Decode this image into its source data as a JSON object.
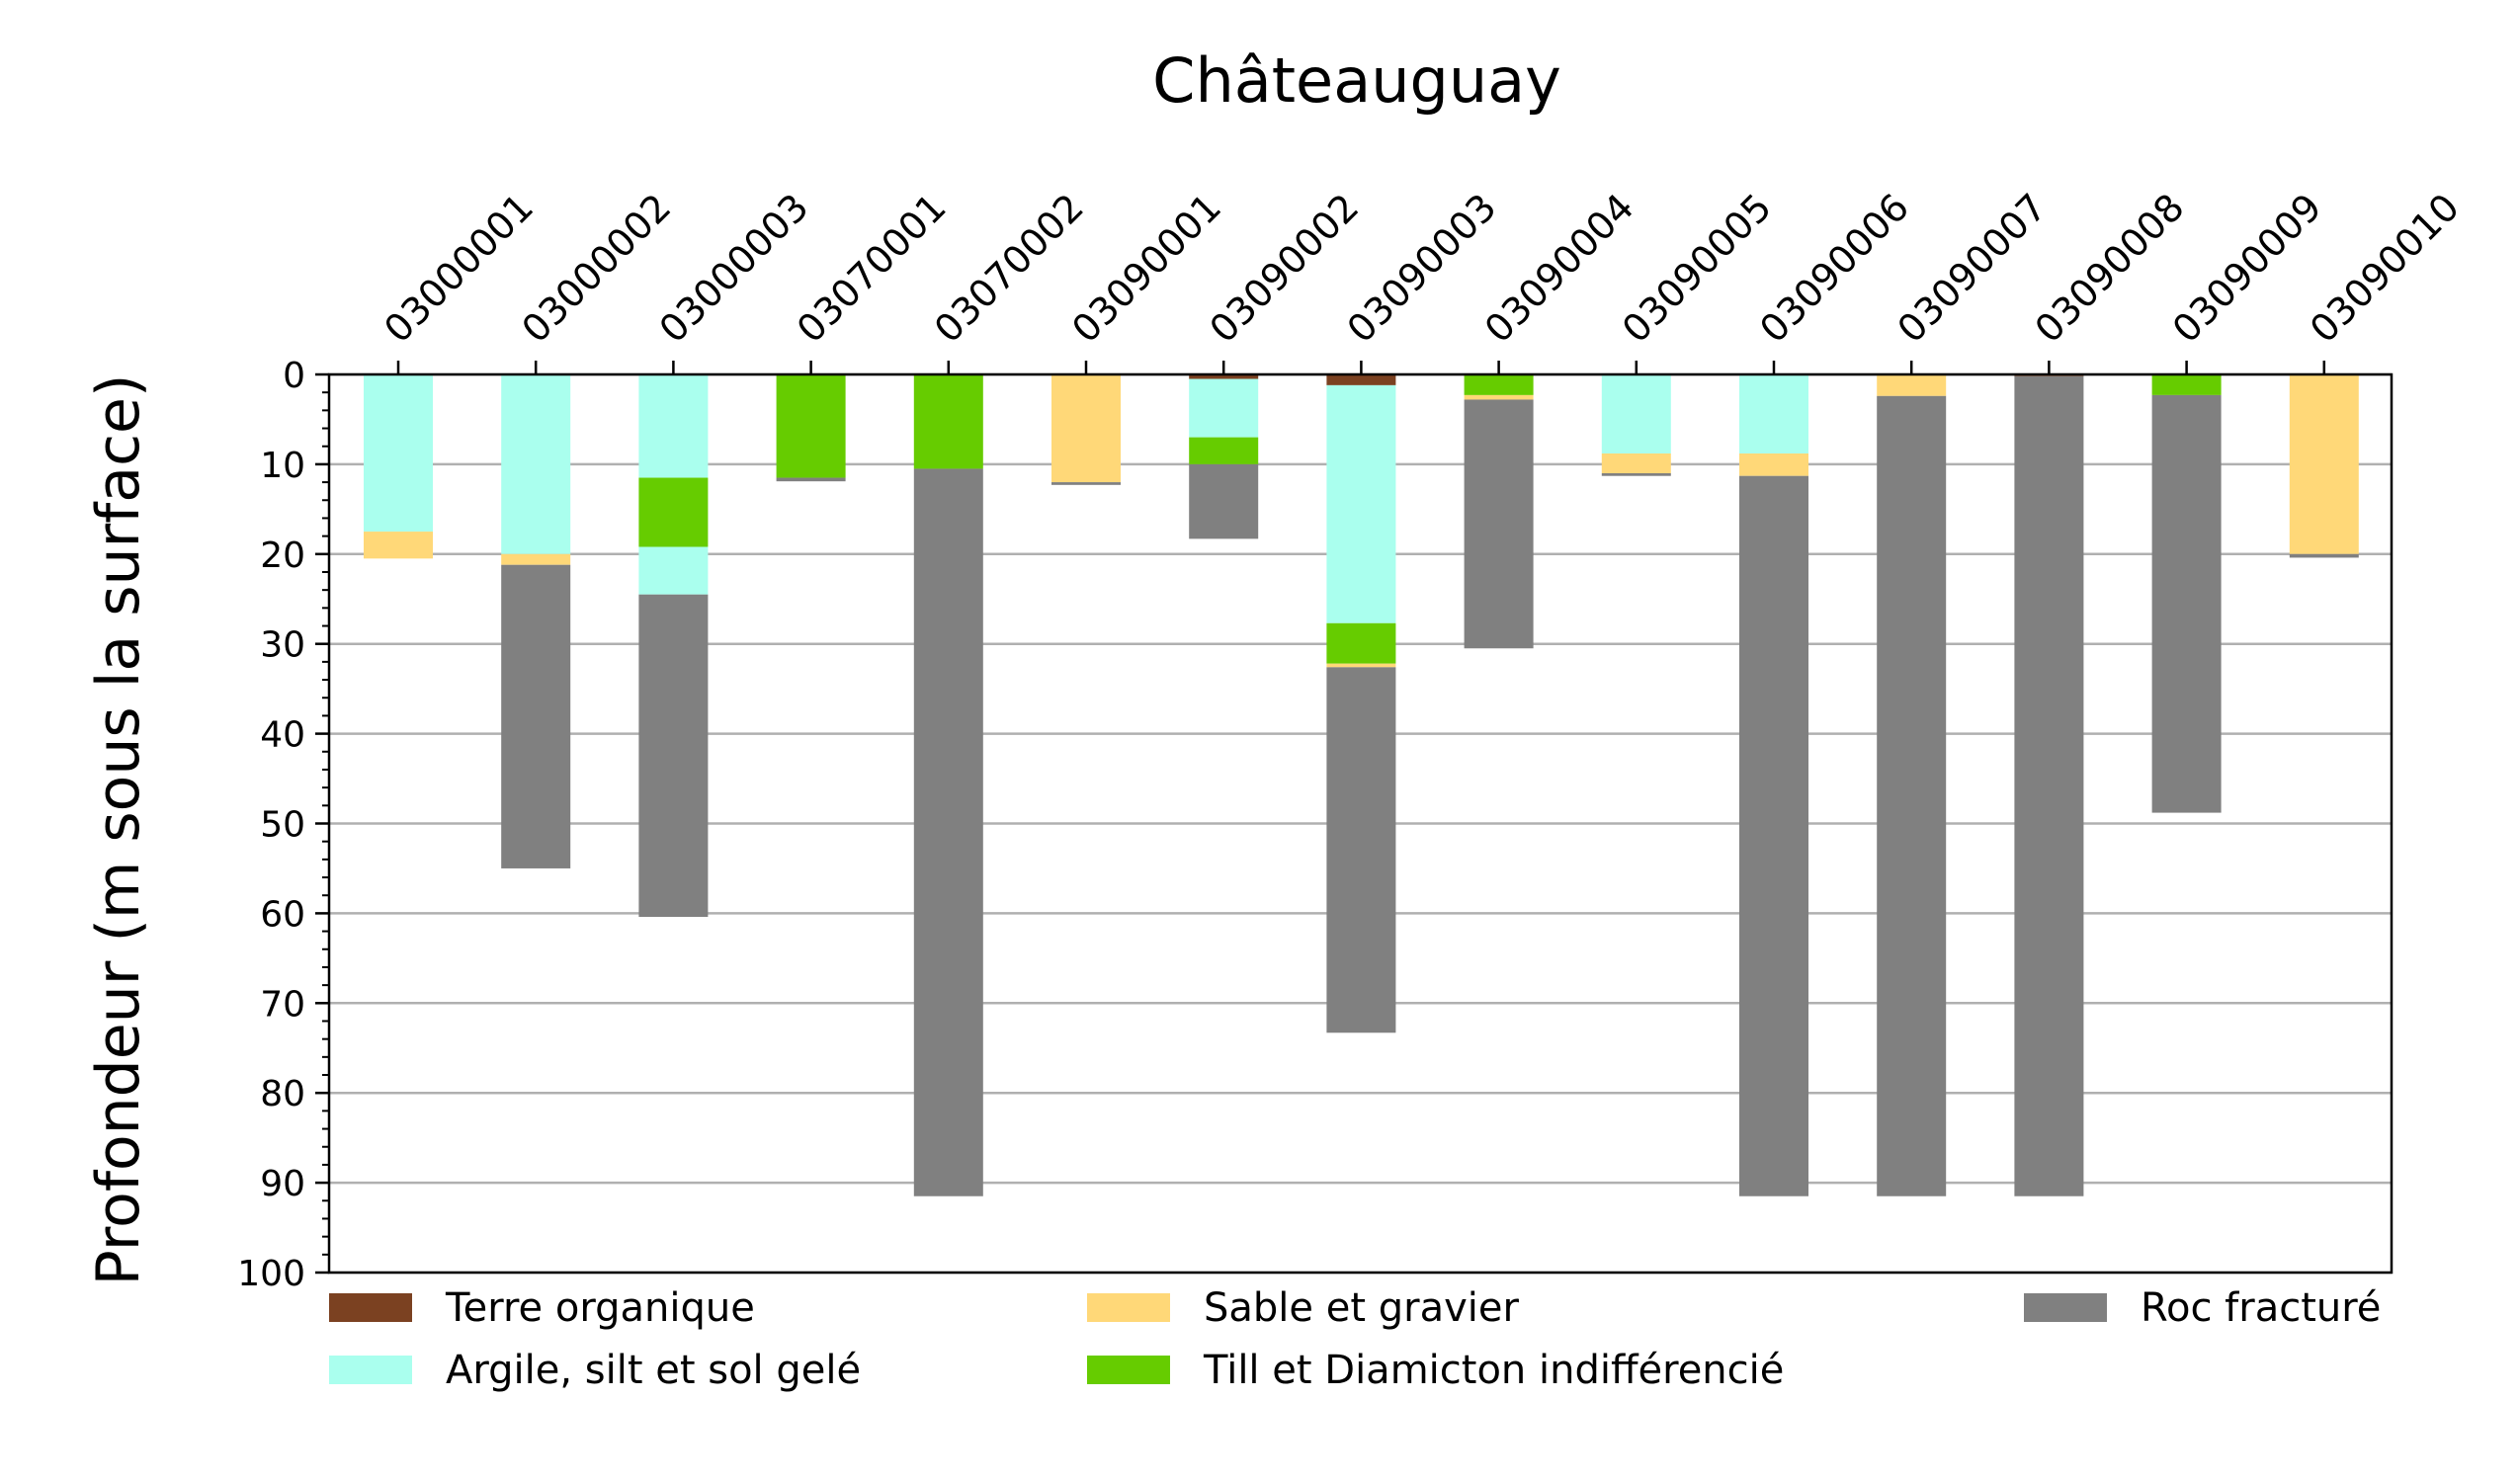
{
  "chart_data": {
    "type": "bar",
    "title": "Châteauguay",
    "ylabel": "Profondeur (m sous la surface)",
    "xlabel": "",
    "ylim": [
      100,
      0
    ],
    "y_ticks": [
      "0",
      "10",
      "20",
      "30",
      "40",
      "50",
      "60",
      "70",
      "80",
      "90",
      "100"
    ],
    "grid": "horizontal",
    "x_axis_position": "top",
    "legend_position": "bottom",
    "categories": [
      "03000001",
      "03000002",
      "03000003",
      "03070001",
      "03070002",
      "03090001",
      "03090002",
      "03090003",
      "03090004",
      "03090005",
      "03090006",
      "03090007",
      "03090008",
      "03090009",
      "03090010"
    ],
    "legend": [
      {
        "key": "organique",
        "label": "Terre organique",
        "color": "#7b4121"
      },
      {
        "key": "argile",
        "label": "Argile, silt et sol gelé",
        "color": "#aaffee"
      },
      {
        "key": "sable",
        "label": "Sable et gravier",
        "color": "#ffd878"
      },
      {
        "key": "till",
        "label": "Till et Diamicton indifférencié",
        "color": "#66cc00"
      },
      {
        "key": "roc",
        "label": "Roc fracturé",
        "color": "#808080"
      }
    ],
    "wells": [
      {
        "id": "03000001",
        "layers": [
          {
            "type": "argile",
            "top": 0,
            "bottom": 17.5
          },
          {
            "type": "sable",
            "top": 17.5,
            "bottom": 20.5
          }
        ]
      },
      {
        "id": "03000002",
        "layers": [
          {
            "type": "argile",
            "top": 0,
            "bottom": 20
          },
          {
            "type": "sable",
            "top": 20,
            "bottom": 21.2
          },
          {
            "type": "roc",
            "top": 21.2,
            "bottom": 55
          }
        ]
      },
      {
        "id": "03000003",
        "layers": [
          {
            "type": "argile",
            "top": 0,
            "bottom": 11.5
          },
          {
            "type": "till",
            "top": 11.5,
            "bottom": 19.2
          },
          {
            "type": "argile",
            "top": 19.2,
            "bottom": 24.5
          },
          {
            "type": "roc",
            "top": 24.5,
            "bottom": 60.4
          }
        ]
      },
      {
        "id": "03070001",
        "layers": [
          {
            "type": "till",
            "top": 0,
            "bottom": 11.5
          },
          {
            "type": "roc",
            "top": 11.5,
            "bottom": 11.9
          }
        ]
      },
      {
        "id": "03070002",
        "layers": [
          {
            "type": "till",
            "top": 0,
            "bottom": 10.5
          },
          {
            "type": "roc",
            "top": 10.5,
            "bottom": 91.5
          }
        ]
      },
      {
        "id": "03090001",
        "layers": [
          {
            "type": "sable",
            "top": 0,
            "bottom": 12
          },
          {
            "type": "roc",
            "top": 12,
            "bottom": 12.3
          }
        ]
      },
      {
        "id": "03090002",
        "layers": [
          {
            "type": "organique",
            "top": 0,
            "bottom": 0.5
          },
          {
            "type": "argile",
            "top": 0.5,
            "bottom": 7
          },
          {
            "type": "till",
            "top": 7,
            "bottom": 10
          },
          {
            "type": "roc",
            "top": 10,
            "bottom": 18.3
          }
        ]
      },
      {
        "id": "03090003",
        "layers": [
          {
            "type": "organique",
            "top": 0,
            "bottom": 1.2
          },
          {
            "type": "argile",
            "top": 1.2,
            "bottom": 27.7
          },
          {
            "type": "till",
            "top": 27.7,
            "bottom": 32.2
          },
          {
            "type": "sable",
            "top": 32.2,
            "bottom": 32.6
          },
          {
            "type": "roc",
            "top": 32.6,
            "bottom": 73.3
          }
        ]
      },
      {
        "id": "03090004",
        "layers": [
          {
            "type": "till",
            "top": 0,
            "bottom": 2.3
          },
          {
            "type": "sable",
            "top": 2.3,
            "bottom": 2.8
          },
          {
            "type": "roc",
            "top": 2.8,
            "bottom": 30.5
          }
        ]
      },
      {
        "id": "03090005",
        "layers": [
          {
            "type": "argile",
            "top": 0,
            "bottom": 8.8
          },
          {
            "type": "sable",
            "top": 8.8,
            "bottom": 11
          },
          {
            "type": "roc",
            "top": 11,
            "bottom": 11.3
          }
        ]
      },
      {
        "id": "03090006",
        "layers": [
          {
            "type": "argile",
            "top": 0,
            "bottom": 8.8
          },
          {
            "type": "sable",
            "top": 8.8,
            "bottom": 11.3
          },
          {
            "type": "roc",
            "top": 11.3,
            "bottom": 91.5
          }
        ]
      },
      {
        "id": "03090007",
        "layers": [
          {
            "type": "sable",
            "top": 0,
            "bottom": 2.4
          },
          {
            "type": "roc",
            "top": 2.4,
            "bottom": 91.5
          }
        ]
      },
      {
        "id": "03090008",
        "layers": [
          {
            "type": "organique",
            "top": 0,
            "bottom": 0.2
          },
          {
            "type": "roc",
            "top": 0.2,
            "bottom": 91.5
          }
        ]
      },
      {
        "id": "03090009",
        "layers": [
          {
            "type": "till",
            "top": 0,
            "bottom": 2.3
          },
          {
            "type": "roc",
            "top": 2.3,
            "bottom": 48.8
          }
        ]
      },
      {
        "id": "03090010",
        "layers": [
          {
            "type": "sable",
            "top": 0,
            "bottom": 20
          },
          {
            "type": "roc",
            "top": 20,
            "bottom": 20.4
          }
        ]
      }
    ]
  }
}
